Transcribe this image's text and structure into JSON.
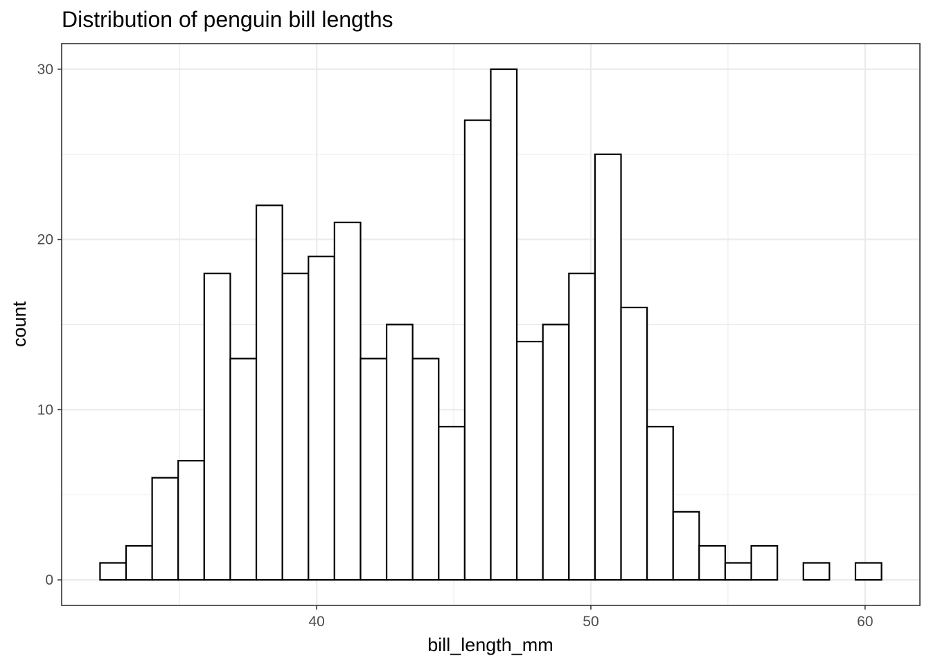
{
  "chart_data": {
    "type": "bar",
    "title": "Distribution of penguin bill lengths",
    "xlabel": "bill_length_mm",
    "ylabel": "count",
    "bin_width": 0.95,
    "bins": [
      {
        "x0": 32.1,
        "x1": 33.05,
        "count": 1
      },
      {
        "x0": 33.05,
        "x1": 34.0,
        "count": 2
      },
      {
        "x0": 34.0,
        "x1": 34.95,
        "count": 6
      },
      {
        "x0": 34.95,
        "x1": 35.9,
        "count": 7
      },
      {
        "x0": 35.9,
        "x1": 36.85,
        "count": 18
      },
      {
        "x0": 36.85,
        "x1": 37.8,
        "count": 13
      },
      {
        "x0": 37.8,
        "x1": 38.75,
        "count": 22
      },
      {
        "x0": 38.75,
        "x1": 39.7,
        "count": 18
      },
      {
        "x0": 39.7,
        "x1": 40.65,
        "count": 19
      },
      {
        "x0": 40.65,
        "x1": 41.6,
        "count": 21
      },
      {
        "x0": 41.6,
        "x1": 42.55,
        "count": 13
      },
      {
        "x0": 42.55,
        "x1": 43.5,
        "count": 15
      },
      {
        "x0": 43.5,
        "x1": 44.45,
        "count": 13
      },
      {
        "x0": 44.45,
        "x1": 45.4,
        "count": 9
      },
      {
        "x0": 45.4,
        "x1": 46.35,
        "count": 27
      },
      {
        "x0": 46.35,
        "x1": 47.3,
        "count": 30
      },
      {
        "x0": 47.3,
        "x1": 48.25,
        "count": 14
      },
      {
        "x0": 48.25,
        "x1": 49.2,
        "count": 15
      },
      {
        "x0": 49.2,
        "x1": 50.15,
        "count": 18
      },
      {
        "x0": 50.15,
        "x1": 51.1,
        "count": 25
      },
      {
        "x0": 51.1,
        "x1": 52.05,
        "count": 16
      },
      {
        "x0": 52.05,
        "x1": 53.0,
        "count": 9
      },
      {
        "x0": 53.0,
        "x1": 53.95,
        "count": 4
      },
      {
        "x0": 53.95,
        "x1": 54.9,
        "count": 2
      },
      {
        "x0": 54.9,
        "x1": 55.85,
        "count": 1
      },
      {
        "x0": 55.85,
        "x1": 56.8,
        "count": 2
      },
      {
        "x0": 56.8,
        "x1": 57.75,
        "count": 0
      },
      {
        "x0": 57.75,
        "x1": 58.7,
        "count": 1
      },
      {
        "x0": 58.7,
        "x1": 59.65,
        "count": 0
      },
      {
        "x0": 59.65,
        "x1": 60.6,
        "count": 1
      }
    ],
    "xlim": [
      30.7,
      62.0
    ],
    "ylim": [
      -1.5,
      31.5
    ],
    "x_ticks": [
      40,
      50,
      60
    ],
    "x_tick_labels": [
      "40",
      "50",
      "60"
    ],
    "x_minor": [
      35,
      45,
      55
    ],
    "y_ticks": [
      0,
      10,
      20,
      30
    ],
    "y_tick_labels": [
      "0",
      "10",
      "20",
      "30"
    ],
    "y_minor": [
      5,
      15,
      25
    ],
    "grid": true,
    "legend": "none",
    "theme": "bw",
    "colors": {
      "bar_fill": "#ffffff",
      "bar_outline": "#000000",
      "grid": "#ebebeb",
      "panel_border": "#333333",
      "tick_text": "#4d4d4d"
    }
  }
}
